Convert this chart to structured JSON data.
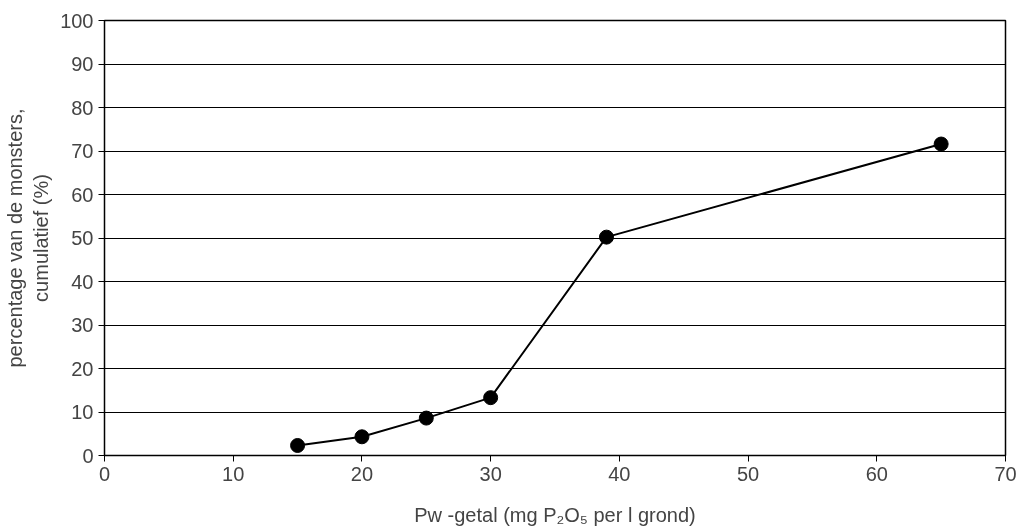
{
  "chart_data": {
    "type": "line",
    "xlabel": "Pw -getal (mg P₂O₅ per l grond)",
    "ylabel": "percentage van de monsters,\ncumulatief (%)",
    "x": [
      15,
      20,
      25,
      30,
      39,
      65
    ],
    "series": [
      {
        "color": "#000000",
        "values": [
          2.3,
          4.3,
          8.6,
          13.3,
          50.2,
          71.6
        ]
      }
    ],
    "xlim": [
      0,
      70
    ],
    "xticks": [
      0,
      10,
      20,
      30,
      40,
      50,
      60,
      70
    ],
    "ylim": [
      0,
      100
    ],
    "yticks": [
      0,
      10,
      20,
      30,
      40,
      50,
      60,
      70,
      80,
      90,
      100
    ],
    "grid": "y",
    "marker": "circle",
    "line_style": "solid"
  }
}
